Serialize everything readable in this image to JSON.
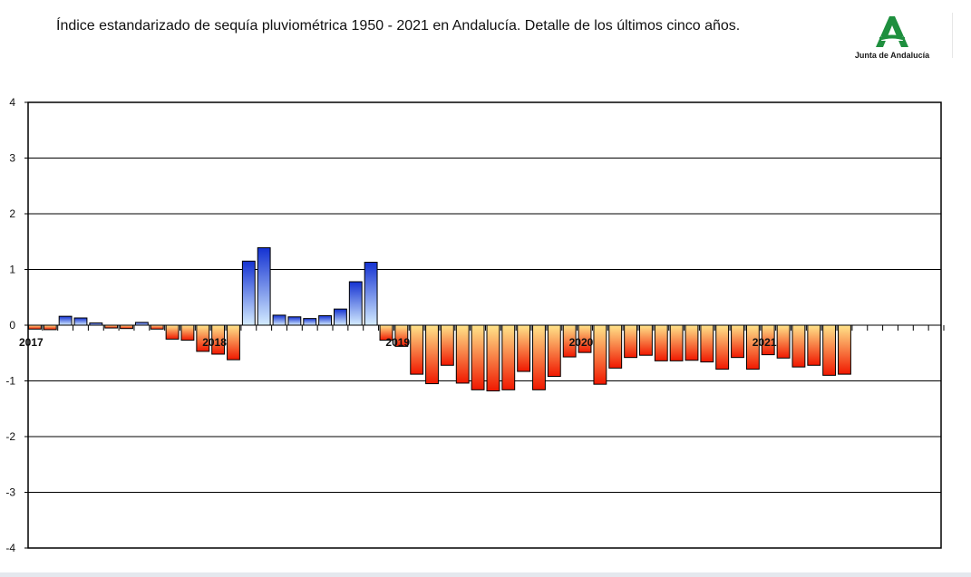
{
  "title": "Índice estandarizado de sequía pluviométrica 1950 - 2021 en Andalucía. Detalle de los últimos cinco años.",
  "logo": {
    "caption": "Junta de Andalucía",
    "color": "#1e8f3e"
  },
  "chart_data": {
    "type": "bar",
    "title": "Índice estandarizado de sequía pluviométrica 1950 - 2021 en Andalucía. Detalle de los últimos cinco años.",
    "xlabel": "",
    "ylabel": "",
    "ylim": [
      -4,
      4
    ],
    "yticks": [
      "4",
      "3",
      "2",
      "1",
      "0",
      "-1",
      "-2",
      "-3",
      "-4"
    ],
    "ytick_values": [
      4,
      3,
      2,
      1,
      0,
      -1,
      -2,
      -3,
      -4
    ],
    "year_labels": [
      "2017",
      "2018",
      "2019",
      "2020",
      "2021"
    ],
    "grid": true,
    "legend": "none",
    "slots": 60,
    "colors": {
      "positive_top": "#1432d2",
      "positive_bottom": "#d4ecff",
      "negative_top": "#ffe48a",
      "negative_bottom": "#f01800",
      "bar_border": "#000000",
      "gridline": "#000000"
    },
    "series": [
      {
        "values": [
          -0.07,
          -0.08,
          0.16,
          0.13,
          0.04,
          -0.05,
          -0.06,
          0.05,
          -0.07,
          -0.25,
          -0.27,
          -0.47,
          -0.52,
          -0.62,
          1.15,
          1.39,
          0.18,
          0.15,
          0.12,
          0.17,
          0.29,
          0.78,
          1.13,
          -0.27,
          -0.38,
          -0.88,
          -1.05,
          -0.72,
          -1.04,
          -1.16,
          -1.18,
          -1.16,
          -0.83,
          -1.16,
          -0.92,
          -0.57,
          -0.49,
          -1.06,
          -0.77,
          -0.58,
          -0.54,
          -0.64,
          -0.64,
          -0.63,
          -0.66,
          -0.79,
          -0.58,
          -0.79,
          -0.53,
          -0.59,
          -0.75,
          -0.72,
          -0.9,
          -0.88,
          0,
          0,
          0,
          0,
          0,
          0
        ]
      }
    ]
  }
}
